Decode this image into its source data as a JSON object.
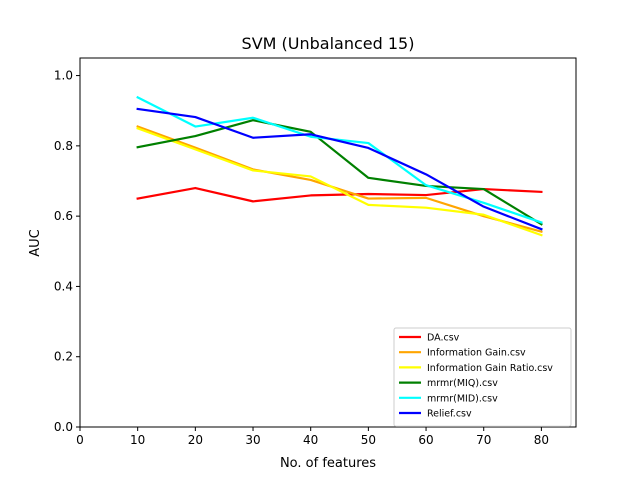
{
  "chart_data": {
    "type": "line",
    "title": "SVM (Unbalanced 15)",
    "xlabel": "No. of features",
    "ylabel": "AUC",
    "xlim": [
      0,
      86
    ],
    "ylim": [
      0.0,
      1.05
    ],
    "xticks": [
      0,
      10,
      20,
      30,
      40,
      50,
      60,
      70,
      80
    ],
    "xtick_labels": [
      "0",
      "10",
      "20",
      "30",
      "40",
      "50",
      "60",
      "70",
      "80"
    ],
    "yticks": [
      0.0,
      0.2,
      0.4,
      0.6,
      0.8,
      1.0
    ],
    "ytick_labels": [
      "0.0",
      "0.2",
      "0.4",
      "0.6",
      "0.8",
      "1.0"
    ],
    "grid": false,
    "legend_position": "lower-right",
    "x": [
      10,
      20,
      30,
      40,
      50,
      60,
      70,
      80
    ],
    "series": [
      {
        "name": "DA.csv",
        "color": "#ff0000",
        "values": [
          0.65,
          0.68,
          0.642,
          0.659,
          0.663,
          0.66,
          0.677,
          0.669
        ]
      },
      {
        "name": "Information Gain.csv",
        "color": "#ffa500",
        "values": [
          0.855,
          0.795,
          0.733,
          0.703,
          0.65,
          0.652,
          0.6,
          0.556
        ]
      },
      {
        "name": "Information Gain Ratio.csv",
        "color": "#ffff00",
        "values": [
          0.85,
          0.79,
          0.73,
          0.713,
          0.632,
          0.624,
          0.604,
          0.546
        ]
      },
      {
        "name": "mrmr(MIQ).csv",
        "color": "#008000",
        "values": [
          0.796,
          0.828,
          0.873,
          0.84,
          0.709,
          0.686,
          0.677,
          0.577
        ]
      },
      {
        "name": "mrmr(MID).csv",
        "color": "#00ffff",
        "values": [
          0.938,
          0.855,
          0.88,
          0.826,
          0.808,
          0.688,
          0.638,
          0.582
        ]
      },
      {
        "name": "Relief.csv",
        "color": "#0000ff",
        "values": [
          0.905,
          0.882,
          0.823,
          0.833,
          0.794,
          0.719,
          0.627,
          0.563
        ]
      }
    ]
  }
}
